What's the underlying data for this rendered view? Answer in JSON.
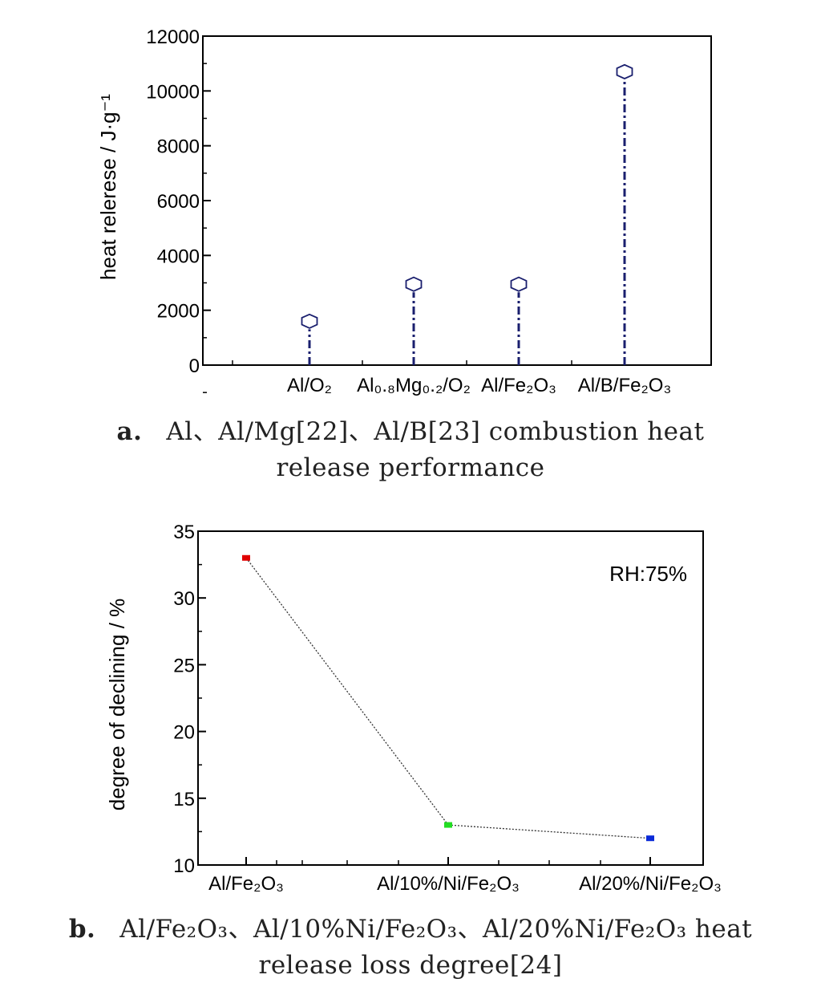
{
  "chart_data": [
    {
      "type": "scatter",
      "ylabel": "heat relerese / J·g⁻¹",
      "ylim": [
        0,
        12000
      ],
      "y_ticks": [
        "0",
        "2000",
        "4000",
        "6000",
        "8000",
        "10000",
        "12000"
      ],
      "categories": [
        "Al/O₂",
        "Al₀.₈Mg₀.₂/O₂",
        "Al/Fe₂O₃",
        "Al/B/Fe₂O₃"
      ],
      "values": [
        1600,
        2950,
        2950,
        10700
      ],
      "marker": "hexagon-open",
      "color": "#1a1f6e",
      "caption": {
        "tag": "a.",
        "line1": "Al、Al/Mg[22]、Al/B[23] combustion heat",
        "line2": "release performance"
      }
    },
    {
      "type": "line",
      "ylabel": "degree of declining / %",
      "ylim": [
        10,
        35
      ],
      "y_ticks": [
        "10",
        "15",
        "20",
        "25",
        "30",
        "35"
      ],
      "categories": [
        "Al/Fe₂O₃",
        "Al/10%/Ni/Fe₂O₃",
        "Al/20%/Ni/Fe₂O₃"
      ],
      "values": [
        33,
        13,
        12
      ],
      "point_colors": [
        "#e00000",
        "#22dd22",
        "#0a2ad8"
      ],
      "annotation": "RH:75%",
      "caption": {
        "tag": "b.",
        "line1": "Al/Fe₂O₃、Al/10%Ni/Fe₂O₃、Al/20%Ni/Fe₂O₃ heat",
        "line2": "release loss degree[24]"
      }
    }
  ]
}
